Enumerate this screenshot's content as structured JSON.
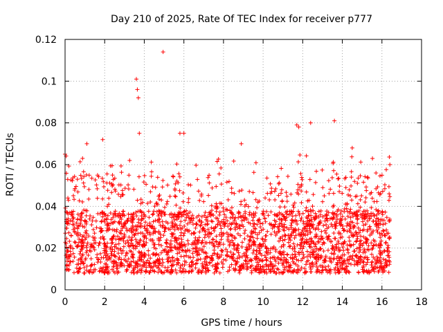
{
  "chart_data": {
    "type": "scatter",
    "title": "Day 210 of 2025, Rate Of TEC Index for receiver p777",
    "xlabel": "GPS time / hours",
    "ylabel": "ROTI / TECUs",
    "xlim": [
      0,
      18
    ],
    "ylim": [
      0,
      0.12
    ],
    "xticks": [
      0,
      2,
      4,
      6,
      8,
      10,
      12,
      14,
      16,
      18
    ],
    "yticks": [
      0,
      0.02,
      0.04,
      0.06,
      0.08,
      0.1,
      0.12
    ],
    "ytick_labels": [
      "0",
      "0.02",
      "0.04",
      "0.06",
      "0.08",
      "0.1",
      "0.12"
    ],
    "grid": true,
    "marker": "+",
    "color": "#ff0000",
    "series": [
      {
        "name": "ROTI",
        "x_range_hours": [
          0,
          16.4
        ],
        "typical_band": [
          0.005,
          0.045
        ],
        "highlighted_points": [
          {
            "x": 0.0,
            "y": 0.065
          },
          {
            "x": 1.1,
            "y": 0.07
          },
          {
            "x": 1.9,
            "y": 0.072
          },
          {
            "x": 3.6,
            "y": 0.101
          },
          {
            "x": 3.65,
            "y": 0.096
          },
          {
            "x": 3.7,
            "y": 0.092
          },
          {
            "x": 3.75,
            "y": 0.075
          },
          {
            "x": 4.95,
            "y": 0.114
          },
          {
            "x": 5.8,
            "y": 0.075
          },
          {
            "x": 6.0,
            "y": 0.075
          },
          {
            "x": 8.9,
            "y": 0.07
          },
          {
            "x": 11.7,
            "y": 0.079
          },
          {
            "x": 11.8,
            "y": 0.078
          },
          {
            "x": 12.4,
            "y": 0.08
          },
          {
            "x": 13.6,
            "y": 0.081
          },
          {
            "x": 14.5,
            "y": 0.068
          },
          {
            "x": 15.7,
            "y": 0.056
          },
          {
            "x": 16.4,
            "y": 0.06
          }
        ]
      }
    ]
  }
}
